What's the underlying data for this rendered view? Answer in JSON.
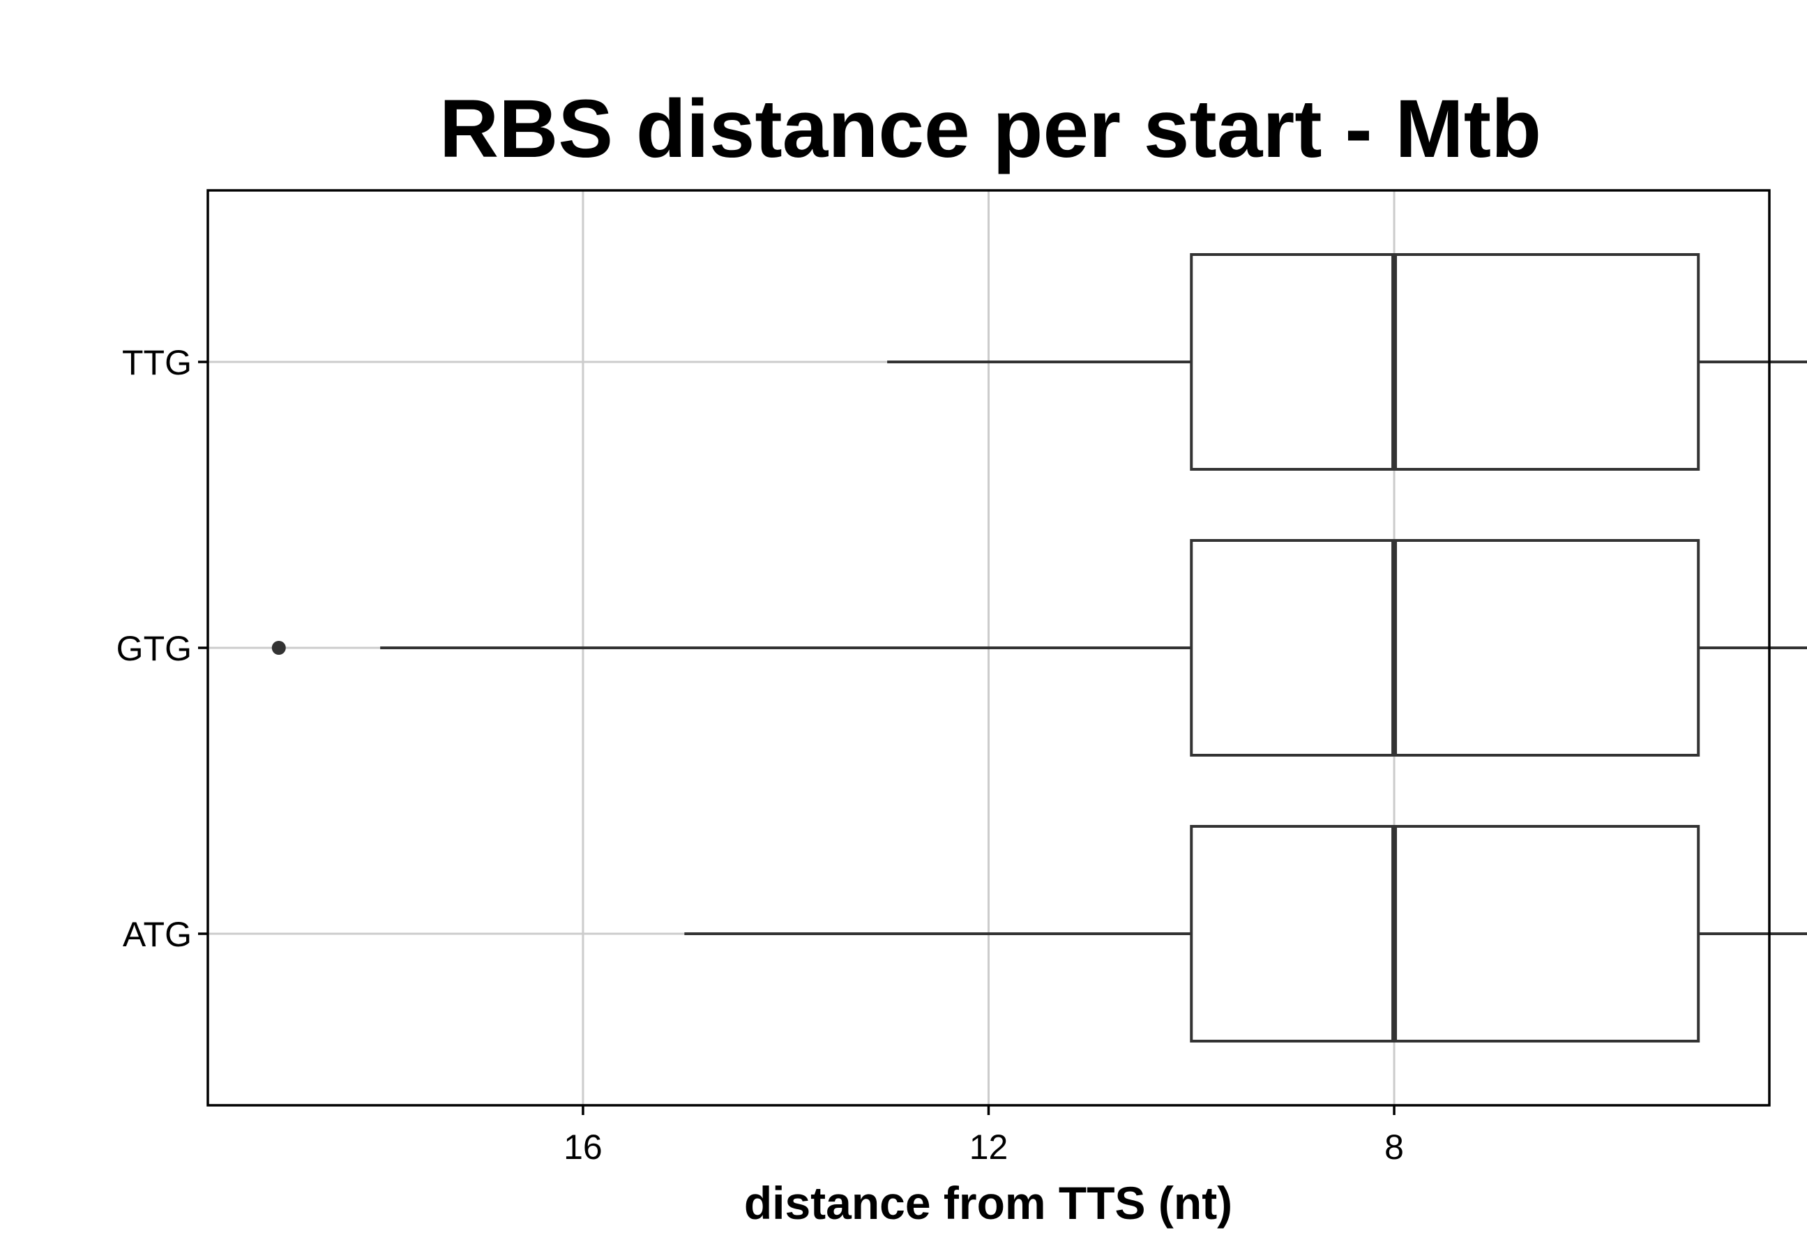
{
  "chart_data": {
    "type": "boxplot",
    "orientation": "horizontal",
    "title": "RBS distance per start - Mtb",
    "xlabel": "distance from TTS (nt)",
    "ylabel": "",
    "x_reversed": true,
    "xlim": [
      19.7,
      4.3
    ],
    "x_ticks": [
      16,
      12,
      8
    ],
    "categories": [
      "ATG",
      "GTG",
      "TTG"
    ],
    "boxes": [
      {
        "name": "ATG",
        "q1": 5,
        "median": 8,
        "q3": 10,
        "whisker_low": 3,
        "whisker_high": 15,
        "outliers": []
      },
      {
        "name": "GTG",
        "q1": 5,
        "median": 8,
        "q3": 10,
        "whisker_low": 3,
        "whisker_high": 18,
        "outliers": [
          19
        ]
      },
      {
        "name": "TTG",
        "q1": 5,
        "median": 8,
        "q3": 10,
        "whisker_low": 3,
        "whisker_high": 13,
        "outliers": []
      }
    ],
    "grid": true,
    "legend": "none"
  }
}
